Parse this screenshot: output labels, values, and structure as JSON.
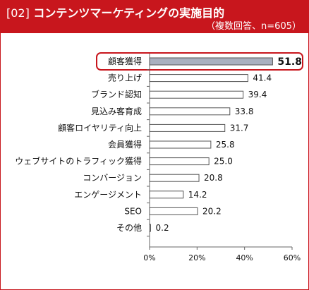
{
  "header": {
    "number": "[02]",
    "title": "コンテンツマーケティングの実施目的",
    "subtitle": "（複数回答、n=605）"
  },
  "colors": {
    "accent": "#c8161d",
    "bar_fill": "#ffffff",
    "bar_stroke": "#555555",
    "highlight_bar_fill": "#a9b0bf"
  },
  "chart_data": {
    "type": "bar",
    "orientation": "horizontal",
    "title": "コンテンツマーケティングの実施目的",
    "subtitle": "（複数回答、n=605）",
    "categories": [
      "顧客獲得",
      "売り上げ",
      "ブランド認知",
      "見込み客育成",
      "顧客ロイヤリティ向上",
      "会員獲得",
      "ウェブサイトのトラフィック獲得",
      "コンバージョン",
      "エンゲージメント",
      "SEO",
      "その他"
    ],
    "values": [
      51.8,
      41.4,
      39.4,
      33.8,
      31.7,
      25.8,
      25.0,
      20.8,
      14.2,
      20.2,
      0.2
    ],
    "value_labels": [
      "51.8",
      "41.4",
      "39.4",
      "33.8",
      "31.7",
      "25.8",
      "25.0",
      "20.8",
      "14.2",
      "20.2",
      "0.2"
    ],
    "highlight_index": 0,
    "xlim": [
      0,
      60
    ],
    "xticks": [
      "0%",
      "20%",
      "40%",
      "60%"
    ],
    "xtick_values": [
      0,
      20,
      40,
      60
    ],
    "grid": false
  }
}
